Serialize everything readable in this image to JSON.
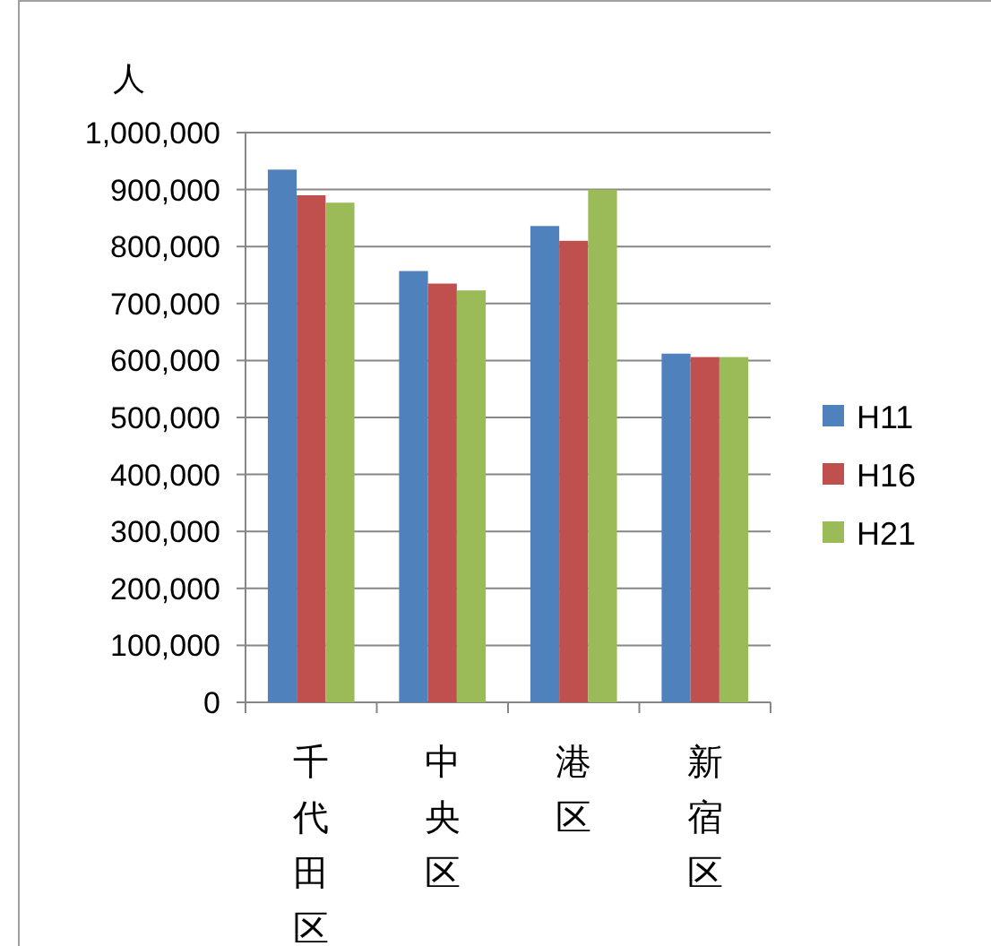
{
  "chart_data": {
    "type": "bar",
    "ylabel": "人",
    "categories": [
      "千代田区",
      "中央区",
      "港区",
      "新宿区"
    ],
    "series": [
      {
        "name": "H11",
        "color": "#4f81bd",
        "values": [
          935000,
          757000,
          836000,
          612000
        ]
      },
      {
        "name": "H16",
        "color": "#c0504d",
        "values": [
          890000,
          735000,
          810000,
          606000
        ]
      },
      {
        "name": "H21",
        "color": "#9bbb59",
        "values": [
          877000,
          723000,
          900000,
          606000
        ]
      }
    ],
    "ylim": [
      0,
      1000000
    ],
    "yticks": [
      {
        "value": 0,
        "label": "0"
      },
      {
        "value": 100000,
        "label": "100,000"
      },
      {
        "value": 200000,
        "label": "200,000"
      },
      {
        "value": 300000,
        "label": "300,000"
      },
      {
        "value": 400000,
        "label": "400,000"
      },
      {
        "value": 500000,
        "label": "500,000"
      },
      {
        "value": 600000,
        "label": "600,000"
      },
      {
        "value": 700000,
        "label": "700,000"
      },
      {
        "value": 800000,
        "label": "800,000"
      },
      {
        "value": 900000,
        "label": "900,000"
      },
      {
        "value": 1000000,
        "label": "1,000,000"
      }
    ],
    "grid": "y",
    "legend": "right"
  }
}
